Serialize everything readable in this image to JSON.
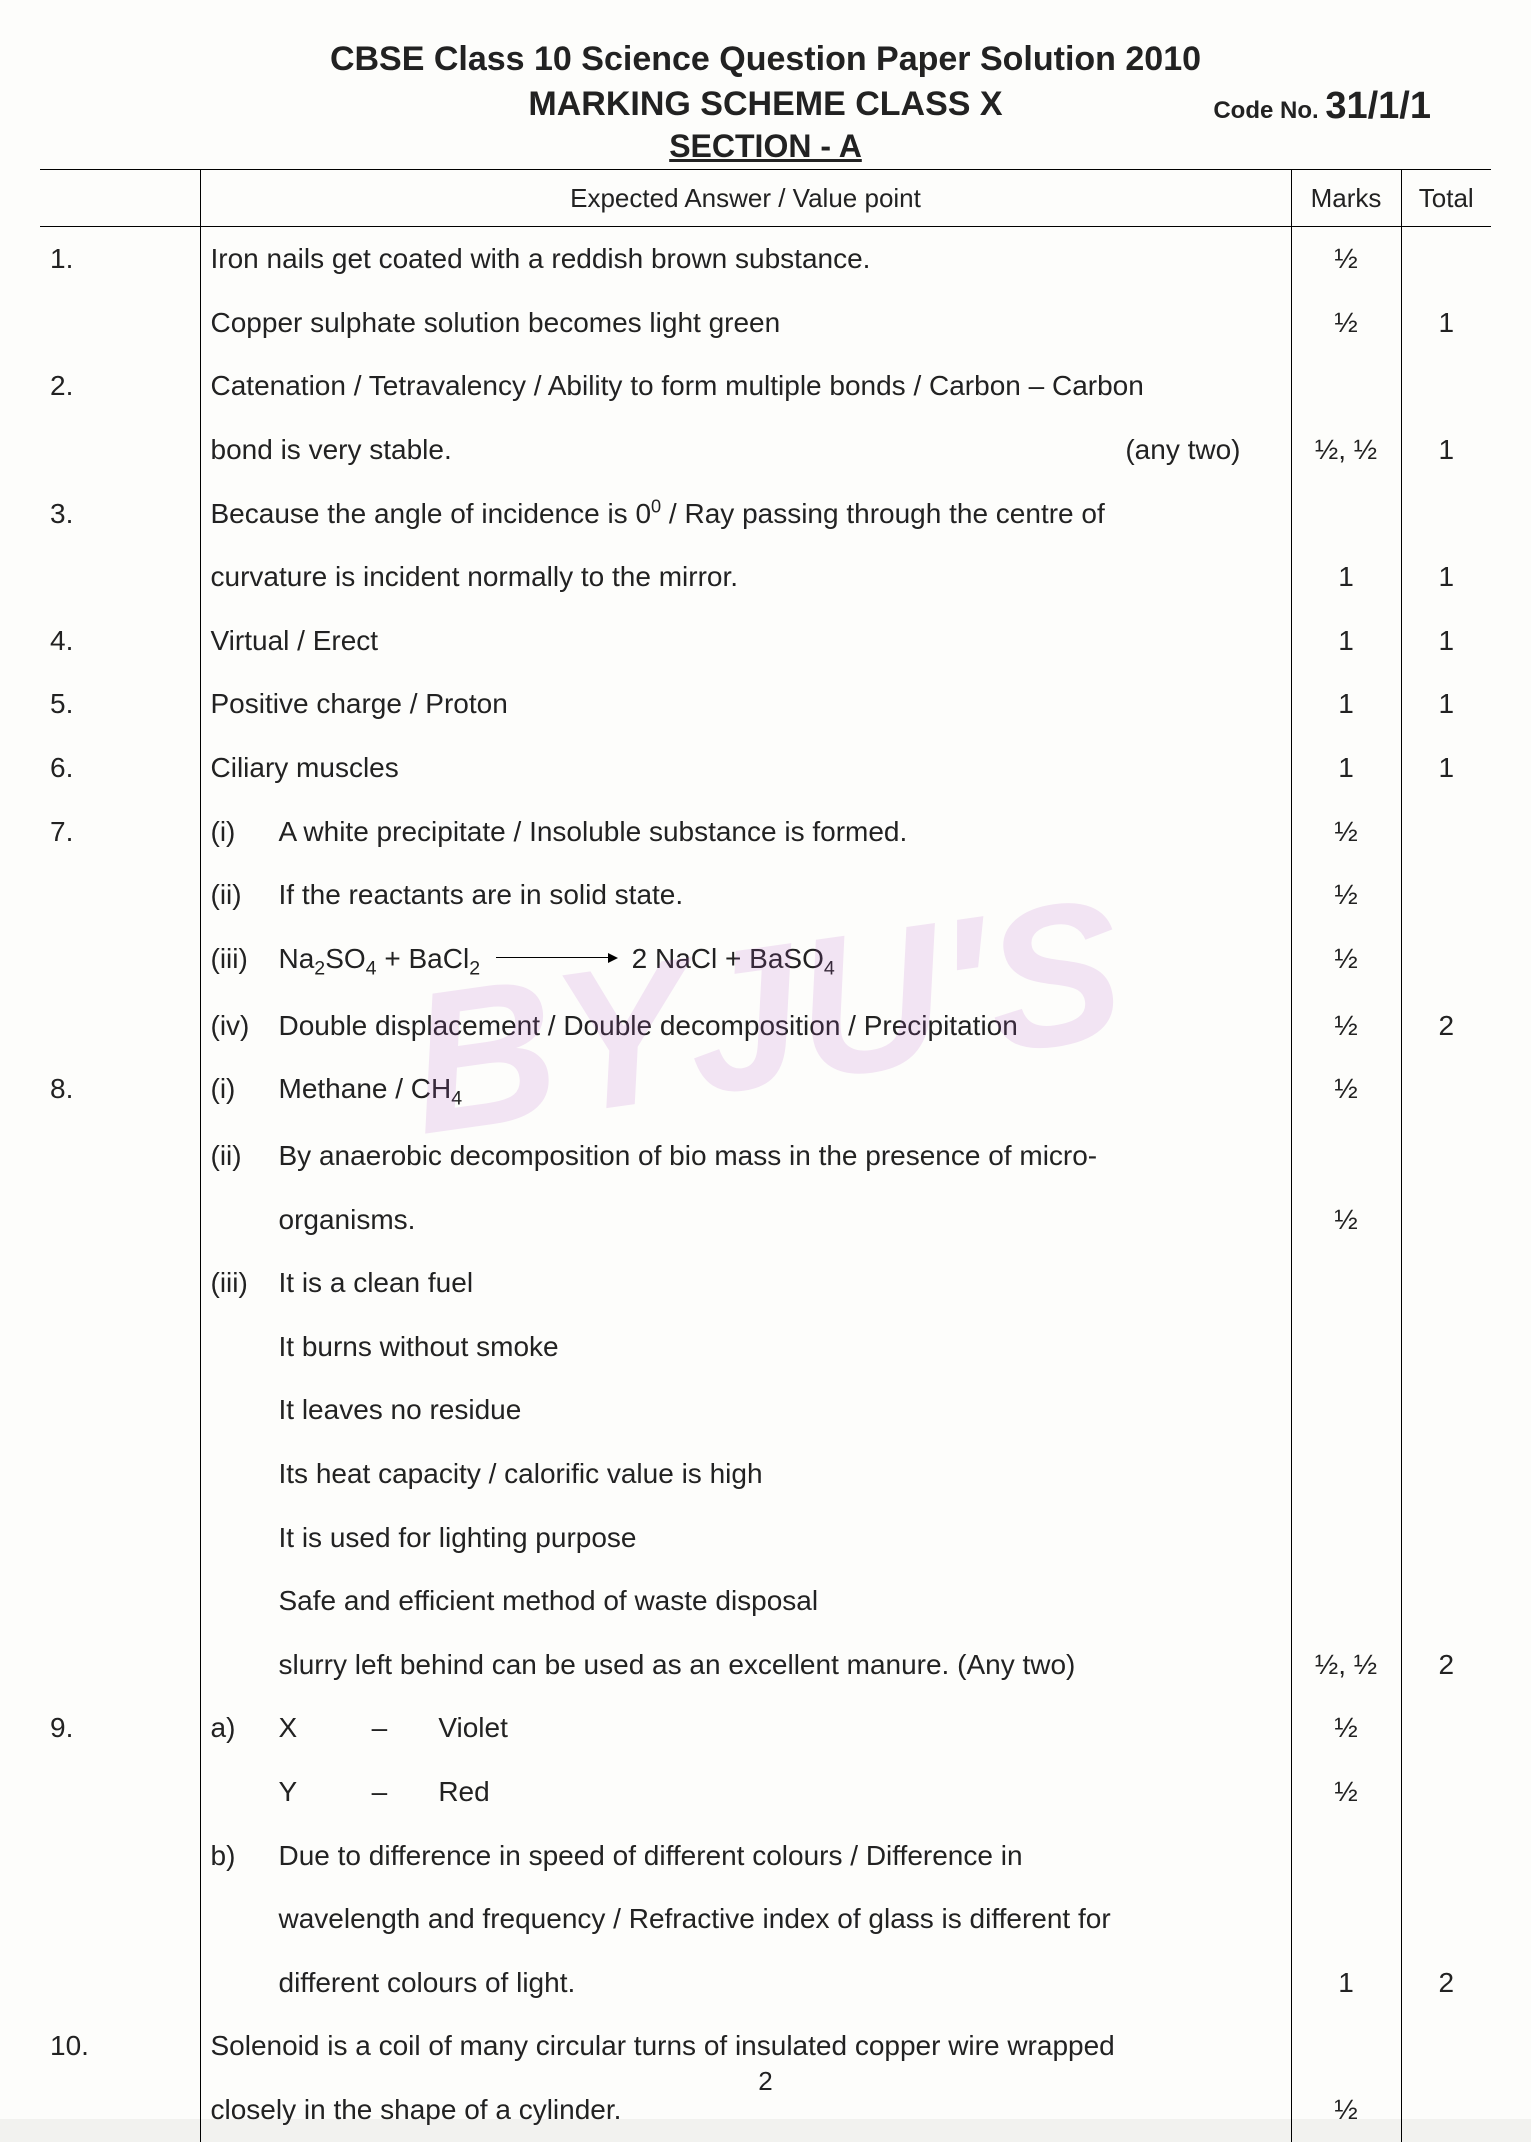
{
  "header": {
    "title": "CBSE Class 10 Science Question Paper Solution 2010",
    "subtitle": "MARKING  SCHEME CLASS X",
    "code_label": "Code No.",
    "code_value": "31/1/1",
    "section": "SECTION - A"
  },
  "watermark": "BYJU'S",
  "columns": {
    "answer": "Expected Answer / Value point",
    "marks": "Marks",
    "total": "Total"
  },
  "rows": [
    {
      "q": "1.",
      "lines": [
        {
          "text": "Iron nails get coated with a reddish brown substance.",
          "marks": "½"
        },
        {
          "text": "Copper sulphate solution becomes light green",
          "marks": "½",
          "total": "1"
        }
      ]
    },
    {
      "q": "2.",
      "lines": [
        {
          "text": "Catenation / Tetravalency / Ability to form multiple bonds / Carbon – Carbon"
        },
        {
          "text": "bond is very stable.",
          "hint": "(any two)",
          "marks": "½, ½",
          "total": "1"
        }
      ]
    },
    {
      "q": "3.",
      "lines": [
        {
          "html": "Because the angle of incidence is 0<sup>0</sup> / Ray passing through the centre of"
        },
        {
          "text": "curvature is incident normally to the mirror.",
          "marks": "1",
          "total": "1"
        }
      ]
    },
    {
      "q": "4.",
      "lines": [
        {
          "text": "Virtual / Erect",
          "marks": "1",
          "total": "1"
        }
      ]
    },
    {
      "q": "5.",
      "lines": [
        {
          "text": "Positive charge / Proton",
          "marks": "1",
          "total": "1"
        }
      ]
    },
    {
      "q": "6.",
      "lines": [
        {
          "text": "Ciliary muscles",
          "marks": "1",
          "total": "1"
        }
      ]
    },
    {
      "q": "7.",
      "lines": [
        {
          "sub": "(i)",
          "text": "A white precipitate / Insoluble substance is formed.",
          "marks": "½"
        },
        {
          "sub": "(ii)",
          "text": "If the reactants are in solid state.",
          "marks": "½"
        },
        {
          "sub": "(iii)",
          "html": "Na<sub class='chem'>2</sub>SO<sub class='chem'>4</sub> + BaCl<sub class='chem'>2</sub> <span class='arrow'></span> 2 NaCl + BaSO<sub class='chem'>4</sub>",
          "marks": "½"
        },
        {
          "sub": "(iv)",
          "text": "Double displacement / Double decomposition / Precipitation",
          "marks": "½",
          "total": "2"
        }
      ]
    },
    {
      "q": "8.",
      "lines": [
        {
          "sub": "(i)",
          "html": "Methane / CH<sub class='chem'>4</sub>",
          "marks": "½"
        },
        {
          "sub": "(ii)",
          "text": "By anaerobic decomposition of bio mass in the presence of micro-"
        },
        {
          "indent": true,
          "text": "organisms.",
          "marks": "½"
        },
        {
          "sub": "(iii)",
          "text": "It is a clean fuel"
        },
        {
          "indent": true,
          "text": "It burns without smoke"
        },
        {
          "indent": true,
          "text": "It leaves no residue"
        },
        {
          "indent": true,
          "text": "Its heat capacity / calorific value is high"
        },
        {
          "indent": true,
          "text": "It is used for lighting purpose"
        },
        {
          "indent": true,
          "text": "Safe and efficient method of waste disposal"
        },
        {
          "indent": true,
          "text": "slurry left behind can be used as an excellent manure.  (Any two)",
          "marks": "½, ½",
          "total": "2"
        }
      ]
    },
    {
      "q": "9.",
      "lines": [
        {
          "sub": "a)",
          "html": "X&nbsp;&nbsp;&nbsp;&nbsp;&nbsp;&nbsp;&nbsp;&nbsp;<span class='dash'>–</span>&nbsp;&nbsp;&nbsp;&nbsp;&nbsp;Violet",
          "marks": "½"
        },
        {
          "indent": true,
          "html": "Y&nbsp;&nbsp;&nbsp;&nbsp;&nbsp;&nbsp;&nbsp;&nbsp;<span class='dash'>–</span>&nbsp;&nbsp;&nbsp;&nbsp;&nbsp;Red",
          "marks": "½"
        },
        {
          "sub": "b)",
          "text": "Due to difference in speed of different colours / Difference in"
        },
        {
          "indent": true,
          "text": "wavelength and frequency / Refractive index of glass is different for"
        },
        {
          "indent": true,
          "text": "different colours of light.",
          "marks": "1",
          "total": "2"
        }
      ]
    },
    {
      "q": "10.",
      "lines": [
        {
          "text": "Solenoid is a coil of many circular turns of insulated copper wire wrapped"
        },
        {
          "text": "closely in the shape of a cylinder.",
          "marks": "½"
        }
      ]
    }
  ],
  "page_number": "2"
}
